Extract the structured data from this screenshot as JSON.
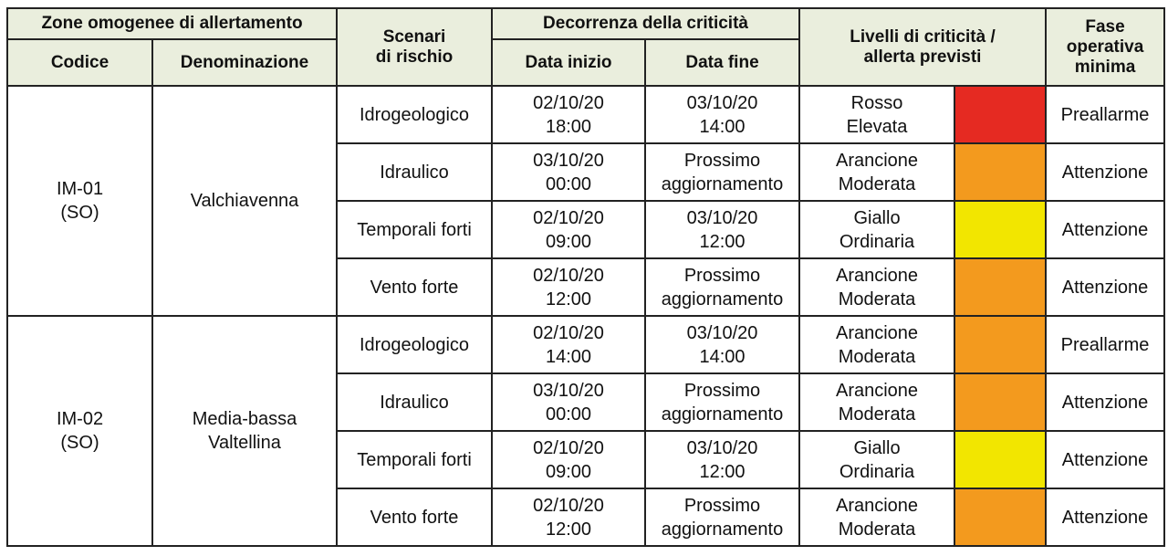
{
  "header": {
    "zone_group": "Zone omogenee di allertamento",
    "code": "Codice",
    "name": "Denominazione",
    "scenarios": "Scenari\ndi rischio",
    "period_group": "Decorrenza della criticità",
    "start": "Data inizio",
    "end": "Data fine",
    "levels": "Livelli di criticità /\nallerta previsti",
    "phase": "Fase\noperativa\nminima"
  },
  "colors": {
    "rosso": "#e52a22",
    "arancione": "#f39a1e",
    "giallo": "#f2e600",
    "header_bg": "#eaeedd"
  },
  "zones": [
    {
      "code": "IM-01\n(SO)",
      "name": "Valchiavenna",
      "rows": [
        {
          "scenario": "Idrogeologico",
          "start": "02/10/20\n18:00",
          "end": "03/10/20\n14:00",
          "level": "Rosso\nElevata",
          "color": "#e52a22",
          "phase": "Preallarme"
        },
        {
          "scenario": "Idraulico",
          "start": "03/10/20\n00:00",
          "end": "Prossimo\naggiornamento",
          "level": "Arancione\nModerata",
          "color": "#f39a1e",
          "phase": "Attenzione"
        },
        {
          "scenario": "Temporali forti",
          "start": "02/10/20\n09:00",
          "end": "03/10/20\n12:00",
          "level": "Giallo\nOrdinaria",
          "color": "#f2e600",
          "phase": "Attenzione"
        },
        {
          "scenario": "Vento forte",
          "start": "02/10/20\n12:00",
          "end": "Prossimo\naggiornamento",
          "level": "Arancione\nModerata",
          "color": "#f39a1e",
          "phase": "Attenzione"
        }
      ]
    },
    {
      "code": "IM-02\n(SO)",
      "name": "Media-bassa\nValtellina",
      "rows": [
        {
          "scenario": "Idrogeologico",
          "start": "02/10/20\n14:00",
          "end": "03/10/20\n14:00",
          "level": "Arancione\nModerata",
          "color": "#f39a1e",
          "phase": "Preallarme"
        },
        {
          "scenario": "Idraulico",
          "start": "03/10/20\n00:00",
          "end": "Prossimo\naggiornamento",
          "level": "Arancione\nModerata",
          "color": "#f39a1e",
          "phase": "Attenzione"
        },
        {
          "scenario": "Temporali forti",
          "start": "02/10/20\n09:00",
          "end": "03/10/20\n12:00",
          "level": "Giallo\nOrdinaria",
          "color": "#f2e600",
          "phase": "Attenzione"
        },
        {
          "scenario": "Vento forte",
          "start": "02/10/20\n12:00",
          "end": "Prossimo\naggiornamento",
          "level": "Arancione\nModerata",
          "color": "#f39a1e",
          "phase": "Attenzione"
        }
      ]
    }
  ]
}
